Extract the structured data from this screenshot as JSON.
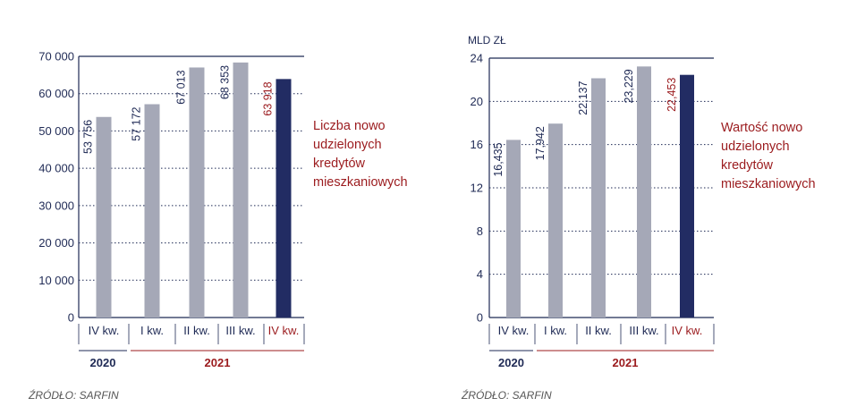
{
  "colors": {
    "bar": "#a5a8b7",
    "bar_highlight": "#222c63",
    "text": "#1f2a55",
    "accent": "#9b1b1e",
    "gridline": "#1f2a55"
  },
  "chart_data": [
    {
      "type": "bar",
      "categories": [
        "IV kw.",
        "I kw.",
        "II kw.",
        "III kw.",
        "IV kw."
      ],
      "values": [
        53756,
        57172,
        67013,
        68353,
        63918
      ],
      "value_labels": [
        "53 756",
        "57 172",
        "67 013",
        "68 353",
        "63 918"
      ],
      "highlight_index": 4,
      "year_groups": [
        {
          "label": "2020",
          "span": [
            0,
            0
          ],
          "accent": false
        },
        {
          "label": "2021",
          "span": [
            1,
            4
          ],
          "accent": true
        }
      ],
      "ylim": [
        0,
        70000
      ],
      "yticks": [
        0,
        10000,
        20000,
        30000,
        40000,
        50000,
        60000,
        70000
      ],
      "ytick_labels": [
        "0",
        "10 000",
        "20 000",
        "30 000",
        "40 000",
        "50 000",
        "60 000",
        "70 000"
      ],
      "ylabel": "",
      "description_lines": [
        "Liczba nowo",
        "udzielonych",
        "kredytów",
        "mieszkaniowych"
      ],
      "source": "ŹRÓDŁO: SARFIN",
      "grid": true
    },
    {
      "type": "bar",
      "categories": [
        "IV kw.",
        "I kw.",
        "II kw.",
        "III kw.",
        "IV kw."
      ],
      "values": [
        16.435,
        17.942,
        22.137,
        23.229,
        22.453
      ],
      "value_labels": [
        "16,435",
        "17,942",
        "22,137",
        "23,229",
        "22,453"
      ],
      "highlight_index": 4,
      "year_groups": [
        {
          "label": "2020",
          "span": [
            0,
            0
          ],
          "accent": false
        },
        {
          "label": "2021",
          "span": [
            1,
            4
          ],
          "accent": true
        }
      ],
      "ylim": [
        0,
        24
      ],
      "yticks": [
        0,
        4,
        8,
        12,
        16,
        20,
        24
      ],
      "ytick_labels": [
        "0",
        "4",
        "8",
        "12",
        "16",
        "20",
        "24"
      ],
      "ylabel": "MLD ZŁ",
      "description_lines": [
        "Wartość nowo",
        "udzielonych",
        "kredytów",
        "mieszkaniowych"
      ],
      "source": "ŹRÓDŁO: SARFIN",
      "grid": true
    }
  ]
}
